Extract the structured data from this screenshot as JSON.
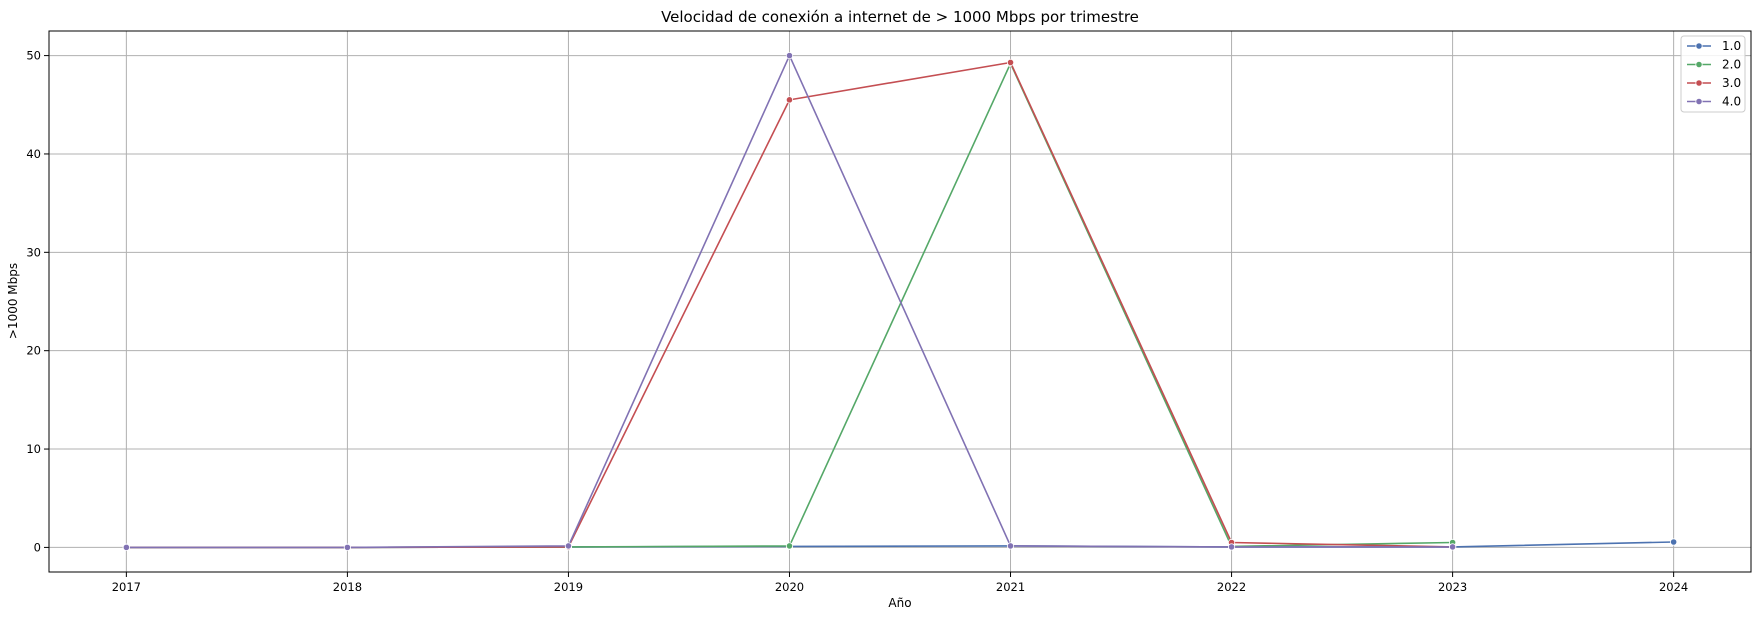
{
  "chart_data": {
    "type": "line",
    "title": "Velocidad de conexión a internet de > 1000 Mbps por trimestre",
    "xlabel": "Año",
    "ylabel": ">1000 Mbps",
    "x": [
      2017,
      2018,
      2019,
      2020,
      2021,
      2022,
      2023,
      2024
    ],
    "x_ticks": [
      "2017",
      "2018",
      "2019",
      "2020",
      "2021",
      "2022",
      "2023",
      "2024"
    ],
    "y_ticks": [
      "0",
      "10",
      "20",
      "30",
      "40",
      "50"
    ],
    "xlim": [
      2016.65,
      2024.35
    ],
    "ylim": [
      -2.5,
      52.5
    ],
    "grid": true,
    "legend_position": "top-right",
    "series": [
      {
        "name": "1.0",
        "color": "#4c72b0",
        "x": [
          2017,
          2018,
          2019,
          2020,
          2021,
          2022,
          2023,
          2024
        ],
        "values": [
          0.0,
          0.0,
          0.05,
          0.1,
          0.15,
          0.05,
          0.05,
          0.55
        ]
      },
      {
        "name": "2.0",
        "color": "#55a868",
        "x": [
          2017,
          2018,
          2019,
          2020,
          2021,
          2022,
          2023
        ],
        "values": [
          0.0,
          0.0,
          0.05,
          0.15,
          49.2,
          0.1,
          0.5
        ]
      },
      {
        "name": "3.0",
        "color": "#c44e52",
        "x": [
          2017,
          2018,
          2019,
          2020,
          2021,
          2022,
          2023
        ],
        "values": [
          0.0,
          0.0,
          0.05,
          45.5,
          49.3,
          0.5,
          0.05
        ]
      },
      {
        "name": "4.0",
        "color": "#8172b3",
        "x": [
          2017,
          2018,
          2019,
          2020,
          2021,
          2022,
          2023
        ],
        "values": [
          0.0,
          0.0,
          0.15,
          50.0,
          0.15,
          0.05,
          0.05
        ]
      }
    ]
  }
}
